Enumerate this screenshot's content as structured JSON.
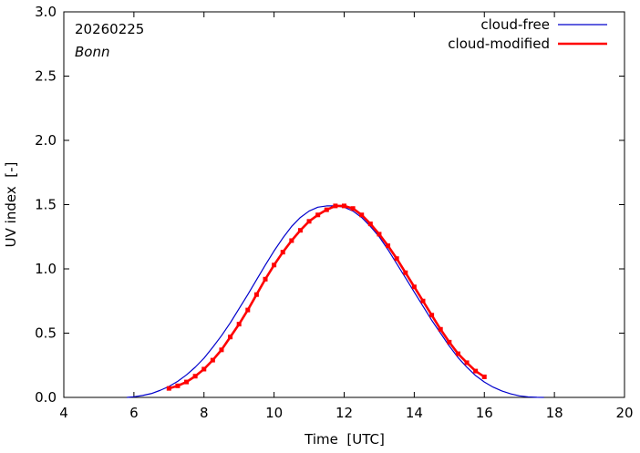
{
  "chart_data": {
    "type": "line",
    "date_label": "20260225",
    "location_label": "Bonn",
    "xlabel": "Time  [UTC]",
    "ylabel": "UV index  [-]",
    "xlim": [
      4,
      20
    ],
    "ylim": [
      0,
      3.0
    ],
    "xticks": [
      4,
      6,
      8,
      10,
      12,
      14,
      16,
      18,
      20
    ],
    "yticks": [
      0.0,
      0.5,
      1.0,
      1.5,
      2.0,
      2.5,
      3.0
    ],
    "ytick_labels": [
      "0.0",
      "0.5",
      "1.0",
      "1.5",
      "2.0",
      "2.5",
      "3.0"
    ],
    "series": [
      {
        "name": "cloud-free",
        "color": "#0000cc",
        "style": "line",
        "x": [
          5.8,
          6.0,
          6.25,
          6.5,
          6.75,
          7.0,
          7.25,
          7.5,
          7.75,
          8.0,
          8.25,
          8.5,
          8.75,
          9.0,
          9.25,
          9.5,
          9.75,
          10.0,
          10.25,
          10.5,
          10.75,
          11.0,
          11.25,
          11.5,
          11.75,
          12.0,
          12.25,
          12.5,
          12.75,
          13.0,
          13.25,
          13.5,
          13.75,
          14.0,
          14.25,
          14.5,
          14.75,
          15.0,
          15.25,
          15.5,
          15.75,
          16.0,
          16.25,
          16.5,
          16.75,
          17.0,
          17.25,
          17.5,
          17.7
        ],
        "y": [
          0.0,
          0.005,
          0.015,
          0.03,
          0.055,
          0.085,
          0.125,
          0.175,
          0.235,
          0.305,
          0.39,
          0.48,
          0.58,
          0.69,
          0.8,
          0.915,
          1.03,
          1.14,
          1.24,
          1.33,
          1.4,
          1.45,
          1.48,
          1.49,
          1.49,
          1.48,
          1.45,
          1.4,
          1.33,
          1.25,
          1.15,
          1.04,
          0.93,
          0.82,
          0.71,
          0.6,
          0.5,
          0.4,
          0.31,
          0.235,
          0.17,
          0.12,
          0.08,
          0.05,
          0.028,
          0.012,
          0.004,
          0.001,
          0.0
        ]
      },
      {
        "name": "cloud-modified",
        "color": "#ff0000",
        "style": "line-points",
        "x": [
          7.0,
          7.25,
          7.5,
          7.75,
          8.0,
          8.25,
          8.5,
          8.75,
          9.0,
          9.25,
          9.5,
          9.75,
          10.0,
          10.25,
          10.5,
          10.75,
          11.0,
          11.25,
          11.5,
          11.75,
          12.0,
          12.25,
          12.5,
          12.75,
          13.0,
          13.25,
          13.5,
          13.75,
          14.0,
          14.25,
          14.5,
          14.75,
          15.0,
          15.25,
          15.5,
          15.75,
          16.0
        ],
        "y": [
          0.07,
          0.09,
          0.12,
          0.165,
          0.22,
          0.29,
          0.37,
          0.47,
          0.57,
          0.68,
          0.8,
          0.92,
          1.03,
          1.13,
          1.22,
          1.3,
          1.37,
          1.42,
          1.46,
          1.49,
          1.49,
          1.47,
          1.42,
          1.35,
          1.27,
          1.18,
          1.08,
          0.97,
          0.86,
          0.75,
          0.64,
          0.53,
          0.43,
          0.34,
          0.27,
          0.205,
          0.16
        ]
      }
    ],
    "legend": {
      "placement": "top-right"
    },
    "grid": false
  }
}
